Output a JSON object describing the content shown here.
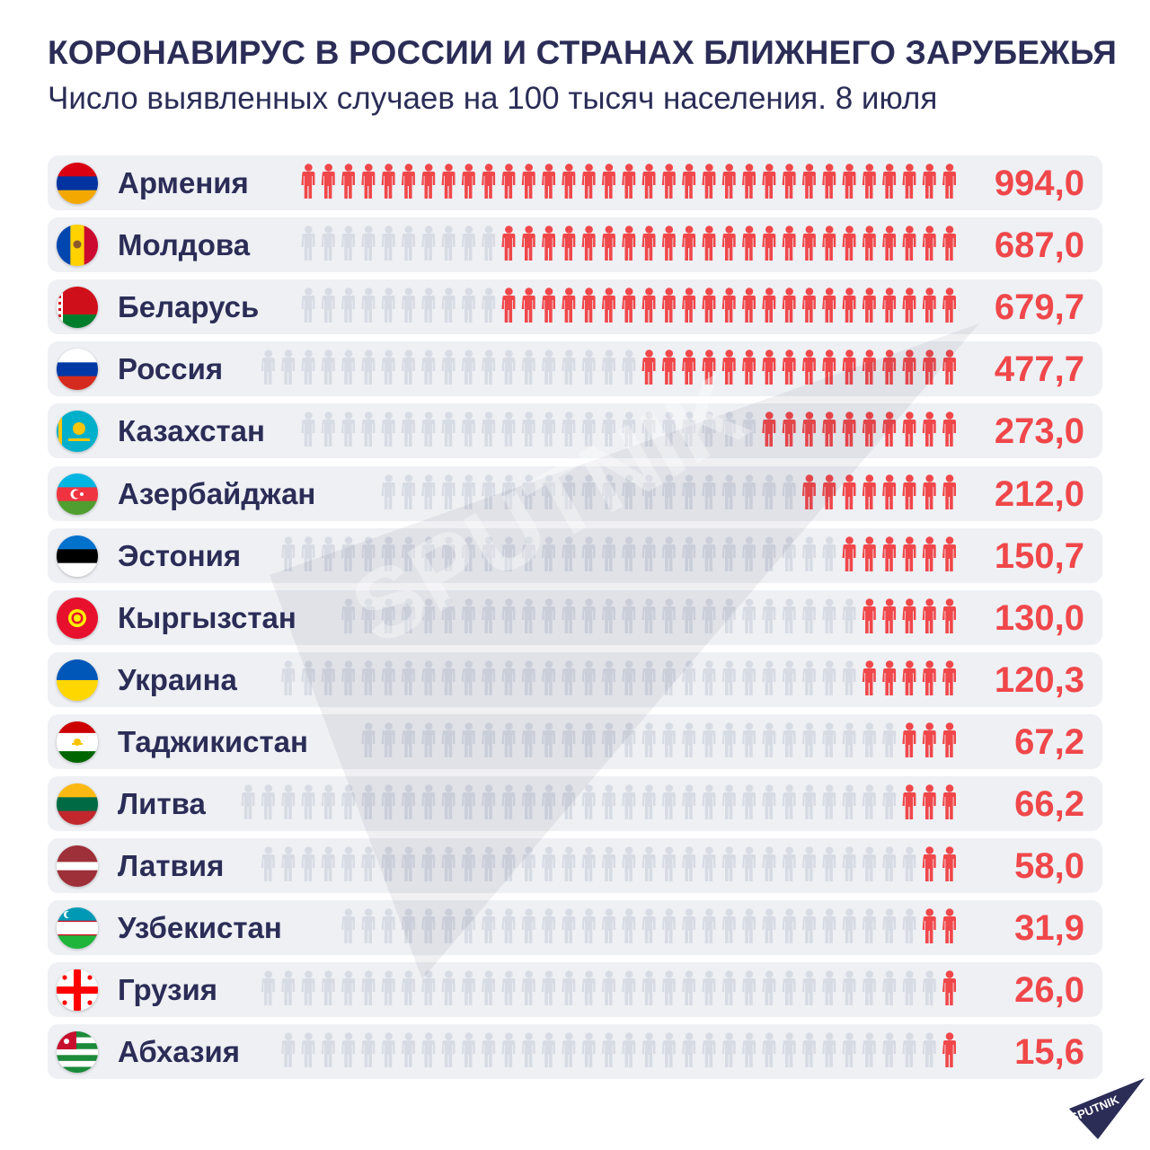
{
  "header": {
    "title": "КОРОНАВИРУС В РОССИИ И СТРАНАХ БЛИЖНЕГО ЗАРУБЕЖЬЯ",
    "subtitle": "Число выявленных случаев на 100 тысяч населения. 8 июля"
  },
  "colors": {
    "accent": "#f0474a",
    "text": "#2b2d57",
    "row_bg": "#eef0f4",
    "person_inactive": "#d7dbe4"
  },
  "chart_data": {
    "type": "bar",
    "categories": [
      "Армения",
      "Молдова",
      "Беларусь",
      "Россия",
      "Казахстан",
      "Азербайджан",
      "Эстония",
      "Кыргызстан",
      "Украина",
      "Таджикистан",
      "Литва",
      "Латвия",
      "Узбекистан",
      "Грузия",
      "Абхазия"
    ],
    "values": [
      994.0,
      687.0,
      679.7,
      477.7,
      273.0,
      212.0,
      150.7,
      130.0,
      120.3,
      67.2,
      66.2,
      58.0,
      31.9,
      26.0,
      15.6
    ],
    "value_labels": [
      "994,0",
      "687,0",
      "679,7",
      "477,7",
      "273,0",
      "212,0",
      "150,7",
      "130,0",
      "120,3",
      "67,2",
      "66,2",
      "58,0",
      "31,9",
      "26,0",
      "15,6"
    ],
    "title": "КОРОНАВИРУС В РОССИИ И СТРАНАХ БЛИЖНЕГО ЗАРУБЕЖЬЯ",
    "xlabel": "",
    "ylabel": "",
    "units_per_icon": 30
  },
  "flags": [
    "armenia-flag",
    "moldova-flag",
    "belarus-flag",
    "russia-flag",
    "kazakhstan-flag",
    "azerbaijan-flag",
    "estonia-flag",
    "kyrgyzstan-flag",
    "ukraine-flag",
    "tajikistan-flag",
    "lithuania-flag",
    "latvia-flag",
    "uzbekistan-flag",
    "georgia-flag",
    "abkhazia-flag"
  ],
  "watermark": "SPUTNIK",
  "logo": {
    "text": "SPUTNIK"
  }
}
